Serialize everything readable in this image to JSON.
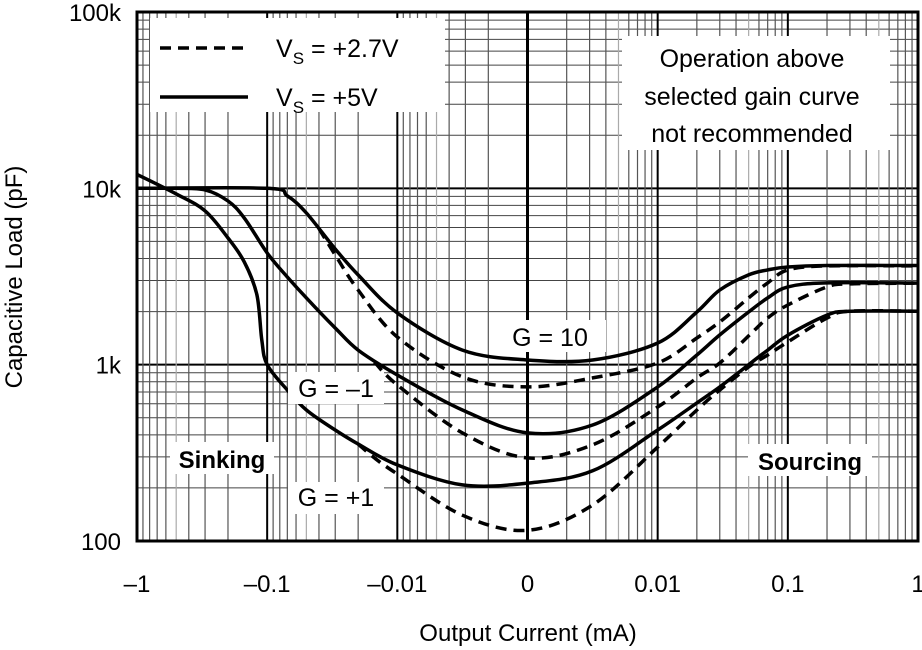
{
  "chart_data": {
    "type": "line",
    "title": "",
    "xlabel": "Output Current (mA)",
    "ylabel": "Capacitive Load (pF)",
    "x_scale": "symmetric log (log on each side of 0)",
    "y_scale": "log",
    "xlim": [
      -1,
      1
    ],
    "ylim": [
      100,
      100000
    ],
    "grid": true,
    "x_ticks": [
      "–1",
      "–0.1",
      "–0.01",
      "0",
      "0.01",
      "0.1",
      "1"
    ],
    "x_tick_values": [
      -1,
      -0.1,
      -0.01,
      0,
      0.01,
      0.1,
      1
    ],
    "y_ticks": [
      "100",
      "1k",
      "10k",
      "100k"
    ],
    "y_tick_values": [
      100,
      1000,
      10000,
      100000
    ],
    "legend": {
      "placement": "top-left",
      "entries": [
        {
          "style": "dashed",
          "v": "V",
          "sub": "S",
          "rest": " = +2.7V"
        },
        {
          "style": "solid",
          "v": "V",
          "sub": "S",
          "rest": " = +5V"
        }
      ]
    },
    "annotations": {
      "note": [
        "Operation above",
        "selected gain curve",
        "not recommended"
      ],
      "g10": "G = 10",
      "gm1": "G = –1",
      "gp1": "G = +1",
      "sinking": "Sinking",
      "sourcing": "Sourcing"
    },
    "series": [
      {
        "gain": "+1",
        "supply": "+5V",
        "style": "solid",
        "x": [
          -1,
          -0.5,
          -0.3,
          -0.2,
          -0.15,
          -0.12,
          -0.11,
          -0.1,
          -0.07,
          -0.05,
          -0.03,
          -0.02,
          -0.01,
          -0.005,
          0,
          0.005,
          0.01,
          0.02,
          0.03,
          0.05,
          0.07,
          0.1,
          0.2,
          0.3,
          1
        ],
        "y": [
          12000,
          9300,
          7450,
          5230,
          3830,
          2490,
          1380,
          1000,
          718,
          553,
          426,
          355,
          270,
          208,
          213,
          250,
          426,
          607,
          748,
          1000,
          1210,
          1470,
          1910,
          2010,
          2010
        ]
      },
      {
        "gain": "+1",
        "supply": "+2.7V",
        "style": "dashed",
        "x": [
          -0.02,
          -0.015,
          -0.01,
          -0.005,
          0,
          0.005,
          0.01,
          0.02,
          0.03,
          0.05,
          0.07,
          0.1,
          0.2,
          0.3,
          1
        ],
        "y": [
          355,
          296,
          240,
          140,
          115,
          160,
          341,
          553,
          718,
          970,
          1135,
          1345,
          1840,
          2010,
          2010
        ]
      },
      {
        "gain": "-1",
        "supply": "+5V",
        "style": "solid",
        "x": [
          -1,
          -0.5,
          -0.3,
          -0.2,
          -0.15,
          -0.1,
          -0.07,
          -0.05,
          -0.03,
          -0.02,
          -0.01,
          -0.005,
          0,
          0.005,
          0.01,
          0.02,
          0.03,
          0.05,
          0.07,
          0.1,
          0.2,
          1
        ],
        "y": [
          10000,
          10000,
          9800,
          8480,
          6800,
          4300,
          3140,
          2390,
          1615,
          1210,
          874,
          553,
          410,
          455,
          748,
          1135,
          1475,
          1990,
          2390,
          2760,
          2910,
          2900
        ]
      },
      {
        "gain": "-1",
        "supply": "+2.7V",
        "style": "dashed",
        "x": [
          -0.015,
          -0.01,
          -0.005,
          0,
          0.005,
          0.01,
          0.02,
          0.03,
          0.05,
          0.07,
          0.1,
          0.2,
          0.3,
          1
        ],
        "y": [
          1036,
          767,
          410,
          296,
          351,
          575,
          841,
          1022,
          1455,
          1840,
          2180,
          2760,
          2870,
          2900
        ]
      },
      {
        "gain": "10",
        "supply": "+5V",
        "style": "solid",
        "x": [
          -1,
          -0.1,
          -0.07,
          -0.05,
          -0.03,
          -0.02,
          -0.01,
          -0.005,
          0,
          0.005,
          0.01,
          0.02,
          0.03,
          0.05,
          0.07,
          0.1,
          0.2,
          1
        ],
        "y": [
          10000,
          10000,
          9060,
          7250,
          4530,
          3230,
          1965,
          1210,
          1063,
          1063,
          1327,
          1990,
          2650,
          3230,
          3445,
          3580,
          3650,
          3650
        ]
      },
      {
        "gain": "10",
        "supply": "+2.7V",
        "style": "dashed",
        "x": [
          -0.04,
          -0.03,
          -0.02,
          -0.01,
          -0.005,
          0,
          0.005,
          0.01,
          0.02,
          0.03,
          0.05,
          0.07,
          0.1,
          0.2,
          1
        ],
        "y": [
          5900,
          4190,
          2650,
          1436,
          852,
          748,
          841,
          1022,
          1417,
          1747,
          2390,
          2910,
          3445,
          3630,
          3630
        ]
      }
    ]
  }
}
